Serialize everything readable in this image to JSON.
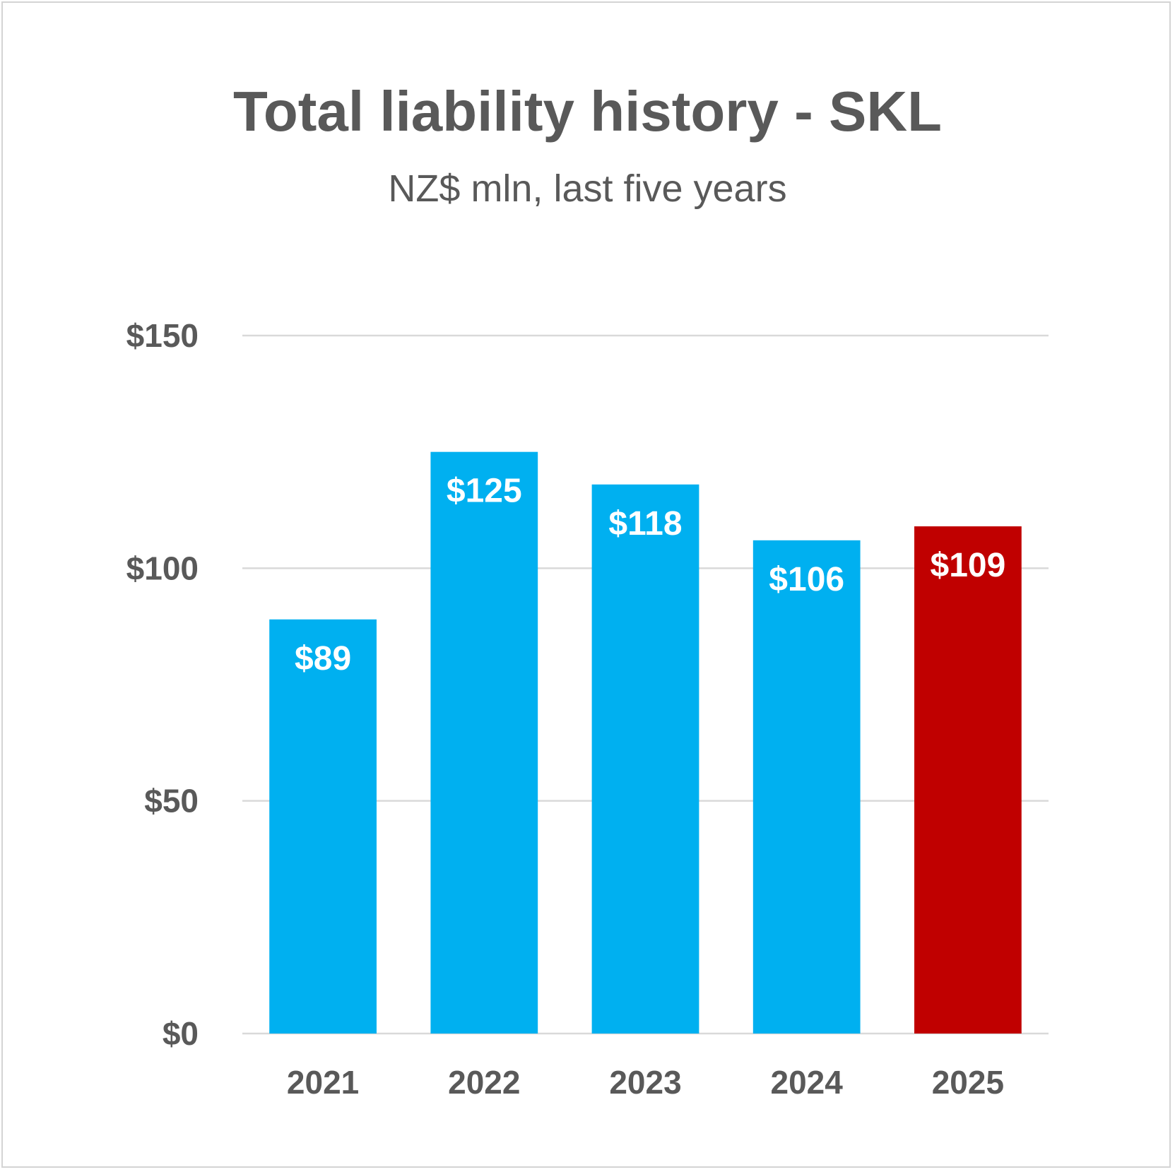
{
  "chart_data": {
    "type": "bar",
    "title": "Total liability history - SKL",
    "subtitle": "NZ$ mln, last five years",
    "categories": [
      "2021",
      "2022",
      "2023",
      "2024",
      "2025"
    ],
    "values": [
      89,
      125,
      118,
      106,
      109
    ],
    "data_labels": [
      "$89",
      "$125",
      "$118",
      "$106",
      "$109"
    ],
    "ylim": [
      0,
      150
    ],
    "yticks": [
      0,
      50,
      100,
      150
    ],
    "ytick_labels": [
      "$0",
      "$50",
      "$100",
      "$150"
    ],
    "grid": true,
    "colors": {
      "default_bar": "#00B0F0",
      "highlight_bar": "#C00000",
      "highlight_category": "2025",
      "gridline": "#d9d9d9",
      "text": "#595959"
    }
  }
}
